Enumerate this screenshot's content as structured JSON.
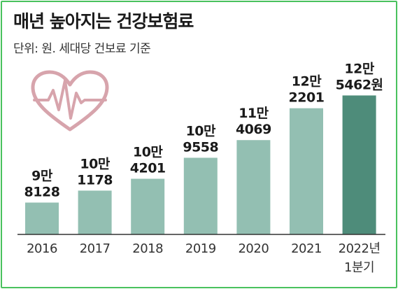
{
  "title": "매년 높아지는 건강보험료",
  "subtitle": "단위: 원. 세대당 건보료 기준",
  "colors": {
    "bar": "#93bfb2",
    "bar_highlight": "#4e8c7a",
    "axis": "#333333",
    "text": "#1a1a1a",
    "heart": "#d7a4ac",
    "frame": "#49c25d"
  },
  "decoration": {
    "icon": "heart-pulse-icon"
  },
  "chart_data": {
    "type": "bar",
    "categories": [
      "2016",
      "2017",
      "2018",
      "2019",
      "2020",
      "2021",
      "2022년 1분기"
    ],
    "category_lines": [
      [
        "2016"
      ],
      [
        "2017"
      ],
      [
        "2018"
      ],
      [
        "2019"
      ],
      [
        "2020"
      ],
      [
        "2021"
      ],
      [
        "2022년",
        "1분기"
      ]
    ],
    "values": [
      98128,
      101178,
      104201,
      109558,
      114069,
      122201,
      125462
    ],
    "data_labels": [
      [
        "9만",
        "8128"
      ],
      [
        "10만",
        "1178"
      ],
      [
        "10만",
        "4201"
      ],
      [
        "10만",
        "9558"
      ],
      [
        "11만",
        "4069"
      ],
      [
        "12만",
        "2201"
      ],
      [
        "12만",
        "5462원"
      ]
    ],
    "highlight_index": 6,
    "ylim": [
      90000,
      130000
    ],
    "grid": false,
    "unit": "원"
  }
}
